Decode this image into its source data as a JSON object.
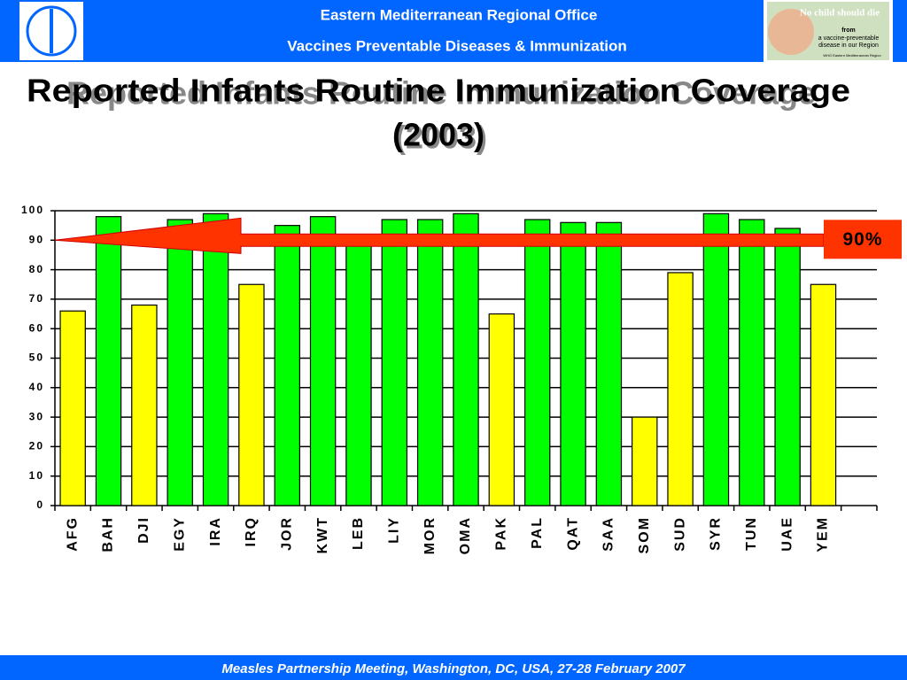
{
  "header": {
    "line1": "Eastern Mediterranean Regional Office",
    "line2": "Vaccines Preventable Diseases & Immunization",
    "badge": [
      "No child should die",
      "from",
      "a vaccine-preventable",
      "disease in our Region",
      "WHO Eastern Mediterranean Region"
    ]
  },
  "footer": "Measles Partnership Meeting, Washington, DC, USA, 27-28 February 2007",
  "chart_data": {
    "type": "bar",
    "title": [
      "Reported Infants Routine Immunization Coverage",
      "(2003)"
    ],
    "categories": [
      "AFG",
      "BAH",
      "DJI",
      "EGY",
      "IRA",
      "IRQ",
      "JOR",
      "KWT",
      "LEB",
      "LIY",
      "MOR",
      "OMA",
      "PAK",
      "PAL",
      "QAT",
      "SAA",
      "SOM",
      "SUD",
      "SYR",
      "TUN",
      "UAE",
      "YEM",
      null
    ],
    "values": [
      66,
      98,
      68,
      97,
      99,
      75,
      95,
      98,
      92,
      97,
      97,
      99,
      65,
      97,
      96,
      96,
      30,
      79,
      99,
      97,
      94,
      75,
      null
    ],
    "colors": [
      "#ffff00",
      "#00ff00",
      "#ffff00",
      "#00ff00",
      "#00ff00",
      "#ffff00",
      "#00ff00",
      "#00ff00",
      "#00ff00",
      "#00ff00",
      "#00ff00",
      "#00ff00",
      "#ffff00",
      "#00ff00",
      "#00ff00",
      "#00ff00",
      "#ffff00",
      "#ffff00",
      "#00ff00",
      "#00ff00",
      "#00ff00",
      "#ffff00",
      null
    ],
    "ylim": [
      0,
      100
    ],
    "yticks": [
      0,
      10,
      20,
      30,
      40,
      50,
      60,
      70,
      80,
      90,
      100
    ],
    "grid": true,
    "annotation": {
      "text": "90%",
      "value": 90,
      "color": "#ff3300"
    }
  }
}
